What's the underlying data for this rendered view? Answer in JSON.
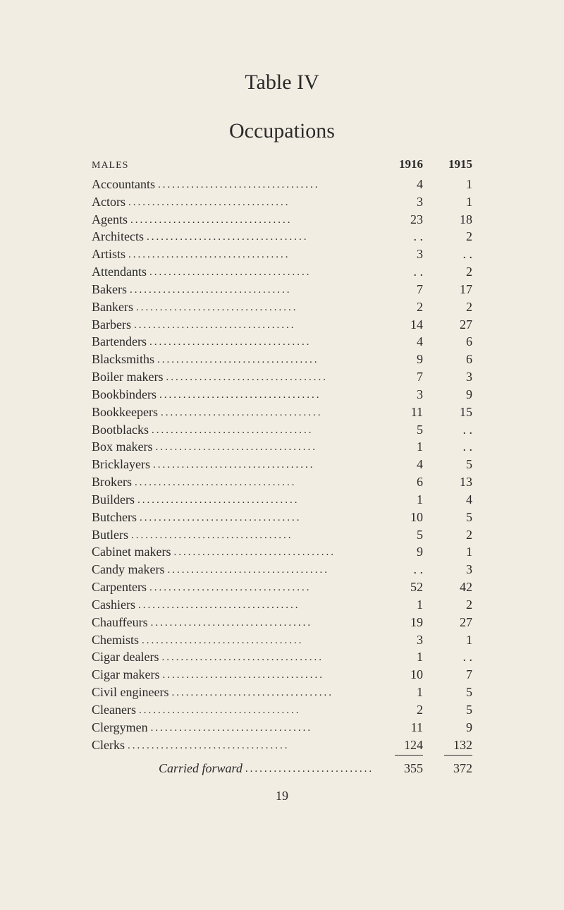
{
  "title_main": "Table IV",
  "title_sub": "Occupations",
  "header_label": "MALES",
  "col1_header": "1916",
  "col2_header": "1915",
  "rows": [
    {
      "label": "Accountants",
      "v1": "4",
      "v2": "1"
    },
    {
      "label": "Actors",
      "v1": "3",
      "v2": "1"
    },
    {
      "label": "Agents",
      "v1": "23",
      "v2": "18"
    },
    {
      "label": "Architects",
      "v1": ". .",
      "v2": "2"
    },
    {
      "label": "Artists",
      "v1": "3",
      "v2": ". ."
    },
    {
      "label": "Attendants",
      "v1": ". .",
      "v2": "2"
    },
    {
      "label": "Bakers",
      "v1": "7",
      "v2": "17"
    },
    {
      "label": "Bankers",
      "v1": "2",
      "v2": "2"
    },
    {
      "label": "Barbers",
      "v1": "14",
      "v2": "27"
    },
    {
      "label": "Bartenders",
      "v1": "4",
      "v2": "6"
    },
    {
      "label": "Blacksmiths",
      "v1": "9",
      "v2": "6"
    },
    {
      "label": "Boiler makers",
      "v1": "7",
      "v2": "3"
    },
    {
      "label": "Bookbinders",
      "v1": "3",
      "v2": "9"
    },
    {
      "label": "Bookkeepers",
      "v1": "11",
      "v2": "15"
    },
    {
      "label": "Bootblacks",
      "v1": "5",
      "v2": ". ."
    },
    {
      "label": "Box makers",
      "v1": "1",
      "v2": ". ."
    },
    {
      "label": "Bricklayers",
      "v1": "4",
      "v2": "5"
    },
    {
      "label": "Brokers",
      "v1": "6",
      "v2": "13"
    },
    {
      "label": "Builders",
      "v1": "1",
      "v2": "4"
    },
    {
      "label": "Butchers",
      "v1": "10",
      "v2": "5"
    },
    {
      "label": "Butlers",
      "v1": "5",
      "v2": "2"
    },
    {
      "label": "Cabinet makers",
      "v1": "9",
      "v2": "1"
    },
    {
      "label": "Candy makers",
      "v1": ". .",
      "v2": "3"
    },
    {
      "label": "Carpenters",
      "v1": "52",
      "v2": "42"
    },
    {
      "label": "Cashiers",
      "v1": "1",
      "v2": "2"
    },
    {
      "label": "Chauffeurs",
      "v1": "19",
      "v2": "27"
    },
    {
      "label": "Chemists",
      "v1": "3",
      "v2": "1"
    },
    {
      "label": "Cigar dealers",
      "v1": "1",
      "v2": ". ."
    },
    {
      "label": "Cigar makers",
      "v1": "10",
      "v2": "7"
    },
    {
      "label": "Civil engineers",
      "v1": "1",
      "v2": "5"
    },
    {
      "label": "Cleaners",
      "v1": "2",
      "v2": "5"
    },
    {
      "label": "Clergymen",
      "v1": "11",
      "v2": "9"
    },
    {
      "label": "Clerks",
      "v1": "124",
      "v2": "132"
    }
  ],
  "forward_label": "Carried forward",
  "forward_v1": "355",
  "forward_v2": "372",
  "page_number": "19",
  "dot_leader": "..................................",
  "colors": {
    "background": "#f2ede3",
    "text": "#2a2a2a"
  },
  "typography": {
    "title_fontsize": 30,
    "body_fontsize": 18,
    "header_label_fontsize": 14
  }
}
